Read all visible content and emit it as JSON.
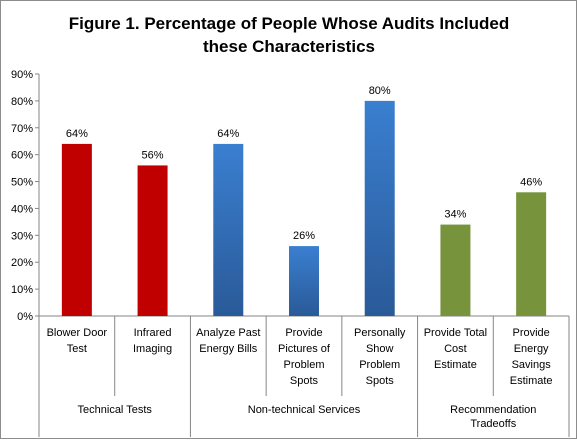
{
  "chart_data": {
    "type": "bar",
    "title": [
      "Figure 1. Percentage of People Whose Audits Included",
      "these Characteristics"
    ],
    "xlabel": "",
    "ylabel": "",
    "ylim": [
      0,
      90
    ],
    "ytick_step": 10,
    "ytick_suffix": "%",
    "grid": false,
    "legend": "none",
    "categories": [
      [
        "Blower Door",
        "Test"
      ],
      [
        "Infrared",
        "Imaging"
      ],
      [
        "Analyze Past",
        "Energy Bills"
      ],
      [
        "Provide",
        "Pictures of",
        "Problem",
        "Spots"
      ],
      [
        "Personally",
        "Show",
        "Problem",
        "Spots"
      ],
      [
        "Provide Total",
        "Cost",
        "Estimate"
      ],
      [
        "Provide",
        "Energy",
        "Savings",
        "Estimate"
      ]
    ],
    "values": [
      64,
      56,
      64,
      26,
      80,
      34,
      46
    ],
    "data_labels": [
      "64%",
      "56%",
      "64%",
      "26%",
      "80%",
      "34%",
      "46%"
    ],
    "groups": [
      {
        "label": [
          "Technical Tests"
        ],
        "start": 0,
        "count": 2,
        "color": "#c00000"
      },
      {
        "label": [
          "Non-technical Services"
        ],
        "start": 2,
        "count": 3,
        "color": "#2e6db4"
      },
      {
        "label": [
          "Recommendation",
          "Tradeoffs"
        ],
        "start": 5,
        "count": 2,
        "color": "#77933c"
      }
    ]
  }
}
